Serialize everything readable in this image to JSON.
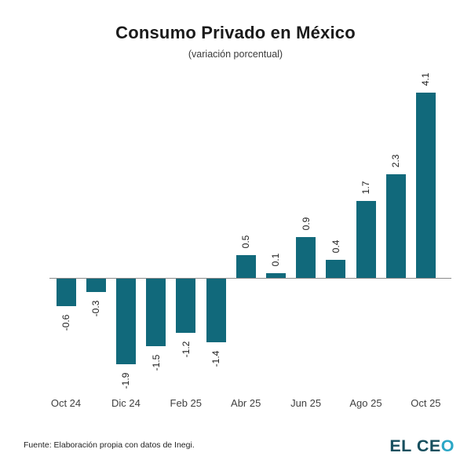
{
  "header": {
    "title": "Consumo Privado en México",
    "subtitle": "(variación porcentual)"
  },
  "chart_data": {
    "type": "bar",
    "title": "Consumo Privado en México",
    "subtitle": "(variación porcentual)",
    "values": [
      -0.6,
      -0.3,
      -1.9,
      -1.5,
      -1.2,
      -1.4,
      0.5,
      0.1,
      0.9,
      0.4,
      1.7,
      2.3,
      4.1
    ],
    "value_labels": [
      "-0.6",
      "-0.3",
      "-1.9",
      "-1.5",
      "-1.2",
      "-1.4",
      "0.5",
      "0.1",
      "0.9",
      "0.4",
      "1.7",
      "2.3",
      "4.1"
    ],
    "value_label_rotation": 90,
    "x_tick_labels": [
      "Oct 24",
      "Dic 24",
      "Feb 25",
      "Abr 25",
      "Jun 25",
      "Ago 25",
      "Oct 25"
    ],
    "tick_positions": [
      0,
      2,
      4,
      6,
      8,
      10,
      12
    ],
    "xlabel": "",
    "ylabel": "",
    "ylim": [
      -2.6,
      4.5
    ],
    "grid": false,
    "y_axis_visible": false,
    "legend": "none",
    "bar_color": "#11697b"
  },
  "footer": {
    "source": "Fuente: Elaboración propia con datos de Inegi.",
    "logo": {
      "text_dark": "EL CE",
      "text_accent": "O"
    }
  },
  "colors": {
    "bar": "#11697b",
    "axis_line": "#8a8a8a",
    "title_text": "#1b1b1b",
    "logo_dark": "#174f5e",
    "logo_accent": "#2ba7c6",
    "background": "#ffffff"
  }
}
